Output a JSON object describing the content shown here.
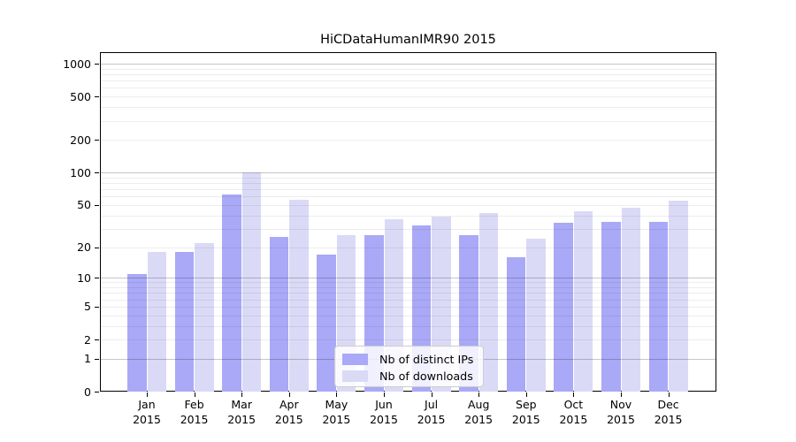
{
  "title": "HiCDataHumanIMR90 2015",
  "chart_data": {
    "type": "bar",
    "title": "HiCDataHumanIMR90 2015",
    "x_month_labels": [
      "Jan",
      "Feb",
      "Mar",
      "Apr",
      "May",
      "Jun",
      "Jul",
      "Aug",
      "Sep",
      "Oct",
      "Nov",
      "Dec"
    ],
    "x_year_label": "2015",
    "series": [
      {
        "name": "Nb of distinct IPs",
        "color": "#a9a9f7",
        "values": [
          11,
          18,
          63,
          25,
          17,
          26,
          32,
          26,
          16,
          34,
          35,
          35
        ]
      },
      {
        "name": "Nb of downloads",
        "color": "#dadaf7",
        "values": [
          18,
          22,
          100,
          56,
          26,
          37,
          39,
          42,
          24,
          44,
          47,
          55
        ]
      }
    ],
    "y_scale": "log1p",
    "y_ticks": [
      0,
      1,
      2,
      5,
      10,
      20,
      50,
      100,
      200,
      500,
      1000
    ],
    "y_major_gridlines": [
      1,
      10,
      100,
      1000
    ],
    "ylim": [
      0,
      1280
    ],
    "grid": "on",
    "legend_position": "lower-center-inside"
  },
  "legend": {
    "items": [
      {
        "label": "Nb of distinct IPs",
        "color": "#a9a9f7"
      },
      {
        "label": "Nb of downloads",
        "color": "#dadaf7"
      }
    ]
  },
  "colors": {
    "bar_distinct_ips": "#a9a9f7",
    "bar_downloads": "#dadaf7",
    "axis": "#000000",
    "grid_major": "rgba(0,0,0,0.22)",
    "grid_minor": "rgba(0,0,0,0.07)",
    "legend_border": "#cccccc"
  }
}
